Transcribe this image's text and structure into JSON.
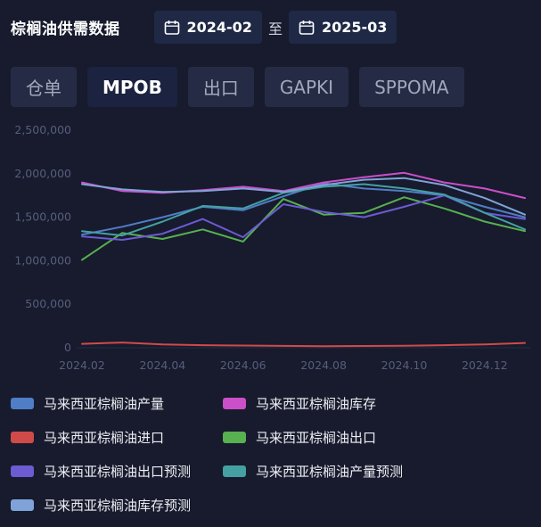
{
  "header": {
    "title": "棕榈油供需数据",
    "start_date": "2024-02",
    "separator": "至",
    "end_date": "2025-03"
  },
  "tabs": [
    {
      "label": "仓单",
      "active": false
    },
    {
      "label": "MPOB",
      "active": true
    },
    {
      "label": "出口",
      "active": false
    },
    {
      "label": "GAPKI",
      "active": false
    },
    {
      "label": "SPPOMA",
      "active": false
    }
  ],
  "colors": {
    "background": "#171b2d",
    "panel": "#262b45",
    "active_tab": "#1b2340",
    "date_box": "#1f2946",
    "axis_text": "#575e7d",
    "legend_text": "#eceef4"
  },
  "chart_data": {
    "type": "line",
    "x": [
      "2024.02",
      "2024.03",
      "2024.04",
      "2024.05",
      "2024.06",
      "2024.07",
      "2024.08",
      "2024.09",
      "2024.10",
      "2024.11",
      "2024.12",
      "2025.01"
    ],
    "x_tick_labels": [
      "2024.02",
      "2024.04",
      "2024.06",
      "2024.08",
      "2024.10",
      "2024.12"
    ],
    "y_ticks": [
      0,
      500000,
      1000000,
      1500000,
      2000000,
      2500000
    ],
    "ylim": [
      0,
      2500000
    ],
    "grid": false,
    "legend_position": "bottom",
    "series": [
      {
        "name": "马来西亚棕榈油产量",
        "color": "#4f7dc6",
        "values": [
          1300000,
          1390000,
          1500000,
          1620000,
          1580000,
          1740000,
          1890000,
          1830000,
          1800000,
          1750000,
          1620000,
          1500000
        ]
      },
      {
        "name": "马来西亚棕榈油库存",
        "color": "#cb4fc8",
        "values": [
          1900000,
          1800000,
          1780000,
          1810000,
          1850000,
          1800000,
          1900000,
          1960000,
          2010000,
          1900000,
          1830000,
          1720000
        ]
      },
      {
        "name": "马来西亚棕榈油进口",
        "color": "#d14a4a",
        "values": [
          45000,
          60000,
          38000,
          30000,
          26000,
          22000,
          18000,
          20000,
          24000,
          30000,
          38000,
          55000
        ]
      },
      {
        "name": "马来西亚棕榈油出口",
        "color": "#58b050",
        "values": [
          1010000,
          1320000,
          1250000,
          1360000,
          1220000,
          1710000,
          1530000,
          1550000,
          1730000,
          1600000,
          1450000,
          1340000
        ]
      },
      {
        "name": "马来西亚棕榈油出口预测",
        "color": "#6c5bd2",
        "values": [
          1280000,
          1240000,
          1310000,
          1480000,
          1270000,
          1650000,
          1560000,
          1500000,
          1620000,
          1750000,
          1550000,
          1480000
        ]
      },
      {
        "name": "马来西亚棕榈油产量预测",
        "color": "#45a0a2",
        "values": [
          1340000,
          1290000,
          1450000,
          1630000,
          1600000,
          1780000,
          1850000,
          1880000,
          1830000,
          1760000,
          1550000,
          1360000
        ]
      },
      {
        "name": "马来西亚棕榈油库存预测",
        "color": "#7fa3d8",
        "values": [
          1880000,
          1820000,
          1790000,
          1800000,
          1830000,
          1790000,
          1870000,
          1930000,
          1950000,
          1870000,
          1720000,
          1530000
        ]
      }
    ]
  }
}
